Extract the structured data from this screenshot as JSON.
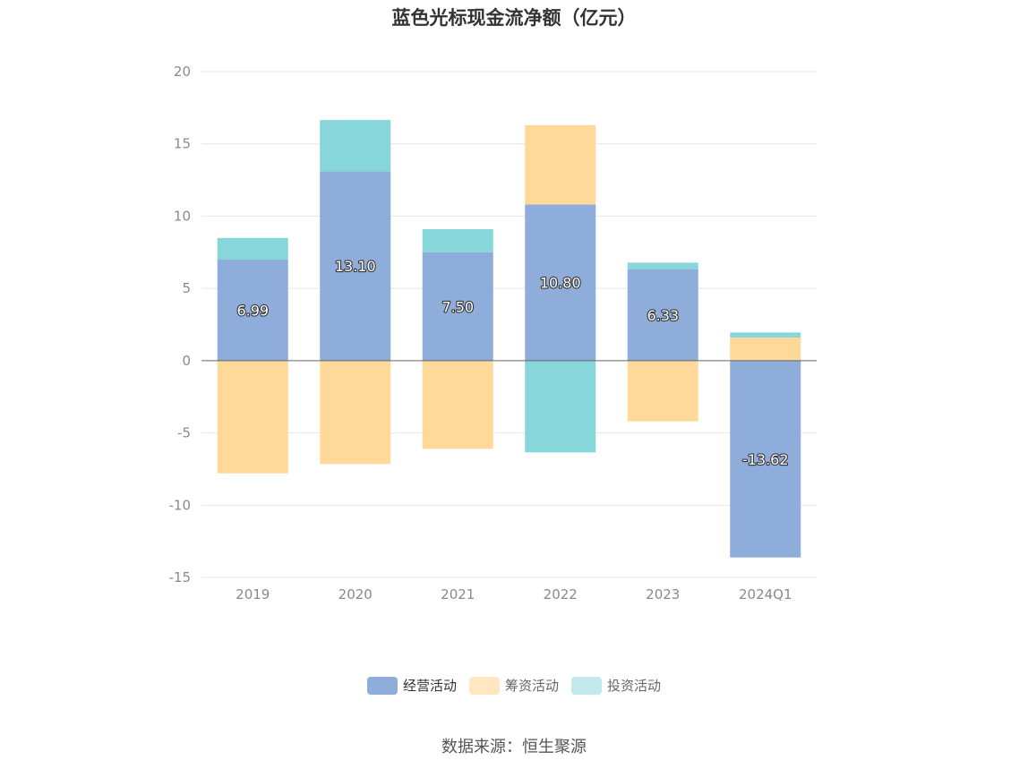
{
  "chart_data": {
    "type": "bar",
    "stacked": true,
    "title": "蓝色光标现金流净额（亿元）",
    "categories": [
      "2019",
      "2020",
      "2021",
      "2022",
      "2023",
      "2024Q1"
    ],
    "series": [
      {
        "name": "经营活动",
        "color": "#8EADDB",
        "values": [
          6.99,
          13.1,
          7.5,
          10.8,
          6.33,
          -13.62
        ]
      },
      {
        "name": "筹资活动",
        "color": "#FED99A",
        "values": [
          -7.8,
          -7.15,
          -6.1,
          5.5,
          -4.2,
          1.6
        ]
      },
      {
        "name": "投资活动",
        "color": "#87D6DA",
        "values": [
          1.5,
          3.55,
          1.6,
          -6.35,
          0.45,
          0.35
        ]
      }
    ],
    "data_labels": [
      "6.99",
      "13.10",
      "7.50",
      "10.80",
      "6.33",
      "-13.62"
    ],
    "ylim": [
      -15,
      20
    ],
    "yticks": [
      20,
      15,
      10,
      5,
      0,
      -5,
      -10,
      -15
    ],
    "xlabel": "",
    "ylabel": "",
    "grid": true,
    "legend_position": "bottom"
  },
  "legend": {
    "items": [
      {
        "label": "经营活动",
        "color": "#8EADDB"
      },
      {
        "label": "筹资活动",
        "color": "#FFE7C2"
      },
      {
        "label": "投资活动",
        "color": "#C4E9EC"
      }
    ]
  },
  "source": "数据来源：恒生聚源"
}
